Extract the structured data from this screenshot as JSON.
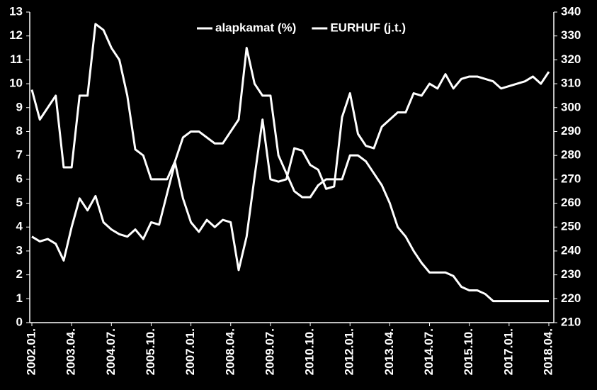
{
  "chart_data": {
    "type": "line",
    "categories": [
      "2002.01.",
      null,
      null,
      null,
      null,
      "2003.04.",
      null,
      null,
      null,
      null,
      "2004.07.",
      null,
      null,
      null,
      null,
      "2005.10.",
      null,
      null,
      null,
      null,
      "2007.01.",
      null,
      null,
      null,
      null,
      "2008.04.",
      null,
      null,
      null,
      null,
      "2009.07.",
      null,
      null,
      null,
      null,
      "2010.10.",
      null,
      null,
      null,
      null,
      "2012.01.",
      null,
      null,
      null,
      null,
      "2013.04.",
      null,
      null,
      null,
      null,
      "2014.07.",
      null,
      null,
      null,
      null,
      "2015.10.",
      null,
      null,
      null,
      null,
      "2017.01.",
      null,
      null,
      null,
      null,
      "2018.04."
    ],
    "series": [
      {
        "name": "alapkamat (%)",
        "color": "#ffffff",
        "values": [
          9.75,
          8.5,
          9,
          9.5,
          6.5,
          6.5,
          9.5,
          9.5,
          12.5,
          12.25,
          11.5,
          11,
          9.5,
          7.25,
          7,
          6,
          6,
          6,
          6.75,
          7.75,
          8,
          8,
          7.75,
          7.5,
          7.5,
          8,
          8.5,
          11.5,
          10,
          9.5,
          9.5,
          7,
          6.25,
          5.5,
          5.25,
          5.25,
          5.75,
          6,
          6,
          6,
          7,
          7,
          6.75,
          6.25,
          5.75,
          5,
          4,
          3.6,
          3,
          2.5,
          2.1,
          2.1,
          2.1,
          1.95,
          1.5,
          1.35,
          1.35,
          1.2,
          0.9,
          0.9,
          0.9,
          0.9,
          0.9,
          0.9,
          0.9,
          0.9
        ]
      },
      {
        "name": "EURHUF (j.t.)",
        "color": "#ffffff",
        "axis": "y2",
        "values": [
          246,
          244,
          245,
          243,
          236,
          250,
          262,
          257,
          263,
          252,
          249,
          247,
          246,
          249,
          245,
          252,
          251,
          264,
          277,
          262,
          252,
          248,
          253,
          250,
          253,
          252,
          232,
          246,
          271,
          295,
          270,
          269,
          270,
          283,
          282,
          276,
          274,
          266,
          267,
          296,
          306,
          289,
          284,
          283,
          292,
          295,
          298,
          298,
          306,
          305,
          310,
          308,
          314,
          308,
          312,
          313,
          313,
          312,
          311,
          308,
          309,
          310,
          311,
          313,
          310,
          315
        ]
      }
    ],
    "ylim": [
      0,
      13
    ],
    "yticks": [
      0,
      1,
      2,
      3,
      4,
      5,
      6,
      7,
      8,
      9,
      10,
      11,
      12,
      13
    ],
    "y2lim": [
      210,
      340
    ],
    "y2ticks": [
      210,
      220,
      230,
      240,
      250,
      260,
      270,
      280,
      290,
      300,
      310,
      320,
      330,
      340
    ],
    "legend": "top"
  }
}
